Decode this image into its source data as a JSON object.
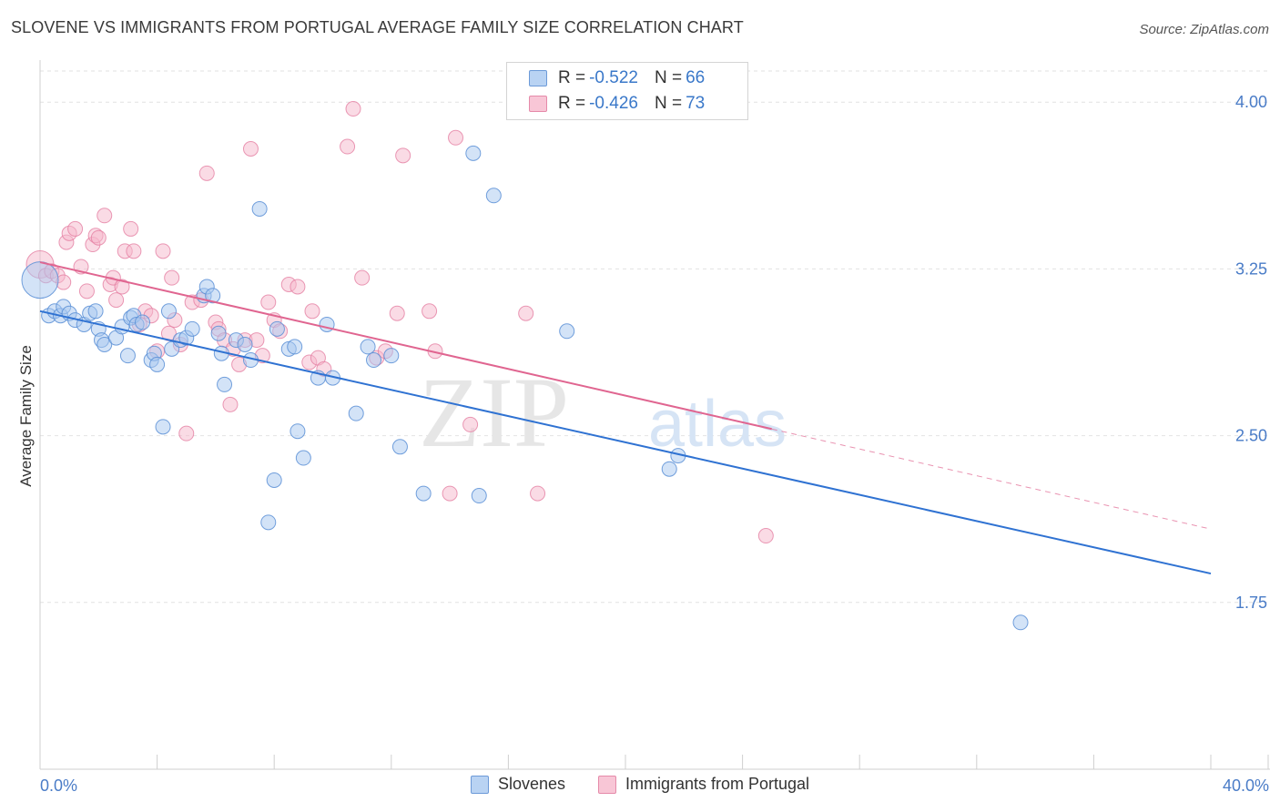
{
  "header": {
    "title": "SLOVENE VS IMMIGRANTS FROM PORTUGAL AVERAGE FAMILY SIZE CORRELATION CHART",
    "source": "Source: ZipAtlas.com"
  },
  "stats": [
    {
      "r_label": "R =",
      "r_value": "-0.522",
      "n_label": "N =",
      "n_value": "66"
    },
    {
      "r_label": "R =",
      "r_value": "-0.426",
      "n_label": "N =",
      "n_value": "73"
    }
  ],
  "legend": [
    "Slovenes",
    "Immigrants from Portugal"
  ],
  "watermark": {
    "zip": "ZIP",
    "atlas": "atlas"
  },
  "colors": {
    "blue_fill": "#a8c8f0",
    "blue_stroke": "#5b8fd6",
    "blue_line": "#2f72d2",
    "pink_fill": "#f5b8cc",
    "pink_stroke": "#e57fa3",
    "pink_line": "#e06590",
    "axis_text": "#4a7cc7",
    "grid": "#e2e2e2"
  },
  "chart_data": {
    "type": "scatter",
    "title": "SLOVENE VS IMMIGRANTS FROM PORTUGAL AVERAGE FAMILY SIZE CORRELATION CHART",
    "xlabel": "",
    "ylabel": "Average Family Size",
    "xlim": [
      0,
      40
    ],
    "ylim": [
      1.0,
      4.14
    ],
    "x_tick_labels": [
      "0.0%",
      "40.0%"
    ],
    "y_ticks": [
      1.75,
      2.5,
      3.25,
      4.0
    ],
    "y_tick_labels": [
      "1.75",
      "2.50",
      "3.25",
      "4.00"
    ],
    "grid": "horizontal dashed",
    "series": [
      {
        "name": "Slovenes",
        "color": "#5b8fd6",
        "trend": {
          "x0": 0,
          "y0": 3.06,
          "x1": 40,
          "y1": 1.88
        },
        "points": [
          [
            0.0,
            3.2
          ],
          [
            0.3,
            3.04
          ],
          [
            0.5,
            3.06
          ],
          [
            0.7,
            3.04
          ],
          [
            0.8,
            3.08
          ],
          [
            1.0,
            3.05
          ],
          [
            1.2,
            3.02
          ],
          [
            1.5,
            3.0
          ],
          [
            1.7,
            3.05
          ],
          [
            1.9,
            3.06
          ],
          [
            2.0,
            2.98
          ],
          [
            2.1,
            2.93
          ],
          [
            2.2,
            2.91
          ],
          [
            2.6,
            2.94
          ],
          [
            2.8,
            2.99
          ],
          [
            3.0,
            2.86
          ],
          [
            3.1,
            3.03
          ],
          [
            3.2,
            3.04
          ],
          [
            3.3,
            3.0
          ],
          [
            3.5,
            3.01
          ],
          [
            3.8,
            2.84
          ],
          [
            3.9,
            2.87
          ],
          [
            4.0,
            2.82
          ],
          [
            4.2,
            2.54
          ],
          [
            4.4,
            3.06
          ],
          [
            4.5,
            2.89
          ],
          [
            4.8,
            2.93
          ],
          [
            5.0,
            2.94
          ],
          [
            5.2,
            2.98
          ],
          [
            5.6,
            3.13
          ],
          [
            5.7,
            3.17
          ],
          [
            5.9,
            3.13
          ],
          [
            6.1,
            2.96
          ],
          [
            6.2,
            2.87
          ],
          [
            6.3,
            2.73
          ],
          [
            6.7,
            2.93
          ],
          [
            7.0,
            2.91
          ],
          [
            7.2,
            2.84
          ],
          [
            7.5,
            3.52
          ],
          [
            7.8,
            2.11
          ],
          [
            8.0,
            2.3
          ],
          [
            8.1,
            2.98
          ],
          [
            8.5,
            2.89
          ],
          [
            8.7,
            2.9
          ],
          [
            8.8,
            2.52
          ],
          [
            9.0,
            2.4
          ],
          [
            9.5,
            2.76
          ],
          [
            9.8,
            3.0
          ],
          [
            10.0,
            2.76
          ],
          [
            10.8,
            2.6
          ],
          [
            11.2,
            2.9
          ],
          [
            11.4,
            2.84
          ],
          [
            12.0,
            2.86
          ],
          [
            12.3,
            2.45
          ],
          [
            13.1,
            2.24
          ],
          [
            14.8,
            3.77
          ],
          [
            15.0,
            2.23
          ],
          [
            15.5,
            3.58
          ],
          [
            18.0,
            2.97
          ],
          [
            21.5,
            2.35
          ],
          [
            21.8,
            2.41
          ],
          [
            33.5,
            1.66
          ]
        ]
      },
      {
        "name": "Immigrants from Portugal",
        "color": "#e57fa3",
        "trend": {
          "x0": 0,
          "y0": 3.28,
          "x1": 25,
          "y1": 2.53
        },
        "trend_ext": {
          "x0": 25,
          "y0": 2.53,
          "x1": 40,
          "y1": 2.08
        },
        "points": [
          [
            0.0,
            3.27
          ],
          [
            0.2,
            3.22
          ],
          [
            0.4,
            3.24
          ],
          [
            0.6,
            3.22
          ],
          [
            0.8,
            3.19
          ],
          [
            0.9,
            3.37
          ],
          [
            1.0,
            3.41
          ],
          [
            1.2,
            3.43
          ],
          [
            1.4,
            3.26
          ],
          [
            1.6,
            3.15
          ],
          [
            1.8,
            3.36
          ],
          [
            1.9,
            3.4
          ],
          [
            2.0,
            3.39
          ],
          [
            2.2,
            3.49
          ],
          [
            2.4,
            3.18
          ],
          [
            2.5,
            3.21
          ],
          [
            2.6,
            3.11
          ],
          [
            2.8,
            3.17
          ],
          [
            2.9,
            3.33
          ],
          [
            3.1,
            3.43
          ],
          [
            3.2,
            3.33
          ],
          [
            3.4,
            3.0
          ],
          [
            3.6,
            3.06
          ],
          [
            3.8,
            3.04
          ],
          [
            4.0,
            2.88
          ],
          [
            4.2,
            3.33
          ],
          [
            4.4,
            2.96
          ],
          [
            4.5,
            3.21
          ],
          [
            4.6,
            3.02
          ],
          [
            4.8,
            2.91
          ],
          [
            5.0,
            2.51
          ],
          [
            5.2,
            3.1
          ],
          [
            5.5,
            3.11
          ],
          [
            5.7,
            3.68
          ],
          [
            6.0,
            3.01
          ],
          [
            6.1,
            2.98
          ],
          [
            6.3,
            2.93
          ],
          [
            6.5,
            2.64
          ],
          [
            6.6,
            2.89
          ],
          [
            6.8,
            2.82
          ],
          [
            7.0,
            2.93
          ],
          [
            7.2,
            3.79
          ],
          [
            7.4,
            2.93
          ],
          [
            7.6,
            2.86
          ],
          [
            7.8,
            3.1
          ],
          [
            8.0,
            3.02
          ],
          [
            8.2,
            2.97
          ],
          [
            8.5,
            3.18
          ],
          [
            8.8,
            3.17
          ],
          [
            9.2,
            2.83
          ],
          [
            9.5,
            2.85
          ],
          [
            9.7,
            2.8
          ],
          [
            9.3,
            3.06
          ],
          [
            10.5,
            3.8
          ],
          [
            10.7,
            3.97
          ],
          [
            11.0,
            3.21
          ],
          [
            11.5,
            2.85
          ],
          [
            11.8,
            2.88
          ],
          [
            12.2,
            3.05
          ],
          [
            12.4,
            3.76
          ],
          [
            13.3,
            3.06
          ],
          [
            13.5,
            2.88
          ],
          [
            14.2,
            3.84
          ],
          [
            14.7,
            2.55
          ],
          [
            14.0,
            2.24
          ],
          [
            16.6,
            3.05
          ],
          [
            17.0,
            2.24
          ],
          [
            24.8,
            2.05
          ]
        ]
      }
    ]
  }
}
